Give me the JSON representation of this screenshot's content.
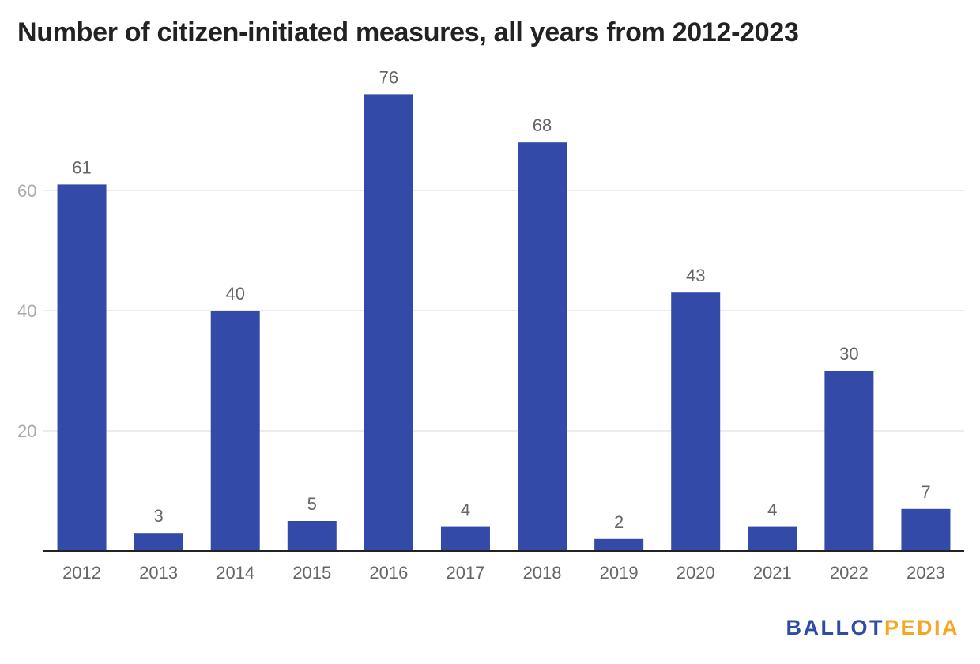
{
  "chart_data": {
    "type": "bar",
    "title": "Number of citizen-initiated measures, all years from 2012-2023",
    "categories": [
      "2012",
      "2013",
      "2014",
      "2015",
      "2016",
      "2017",
      "2018",
      "2019",
      "2020",
      "2021",
      "2022",
      "2023"
    ],
    "values": [
      61,
      3,
      40,
      5,
      76,
      4,
      68,
      2,
      43,
      4,
      30,
      7
    ],
    "xlabel": "",
    "ylabel": "",
    "ylim": [
      0,
      80
    ],
    "yticks": [
      20,
      40,
      60
    ],
    "grid": true,
    "data_labels": true,
    "colors": {
      "bar": "#344aa9",
      "grid": "#e6e6e6",
      "axis": "#222222",
      "tick_text": "#aaaaaa",
      "label_text": "#666666"
    }
  },
  "branding": {
    "logo_part1": "BALLOT",
    "logo_part2": "PEDIA"
  }
}
